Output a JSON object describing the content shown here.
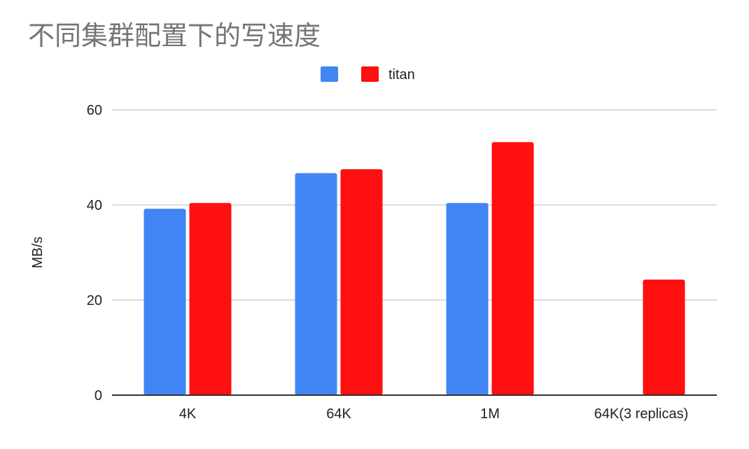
{
  "chart_data": {
    "type": "bar",
    "title": "不同集群配置下的写速度",
    "ylabel": "MB/s",
    "xlabel": "",
    "categories": [
      "4K",
      "64K",
      "1M",
      "64K(3 replicas)"
    ],
    "series": [
      {
        "name": "",
        "color": "#4285f4",
        "values": [
          39.2,
          46.7,
          40.4,
          null
        ]
      },
      {
        "name": "titan",
        "color": "#ff0f0f",
        "values": [
          40.4,
          47.5,
          53.2,
          24.3
        ]
      }
    ],
    "ylim": [
      0,
      60
    ],
    "yticks": [
      0,
      20,
      40,
      60
    ],
    "grid": true,
    "legend": "top-center"
  }
}
